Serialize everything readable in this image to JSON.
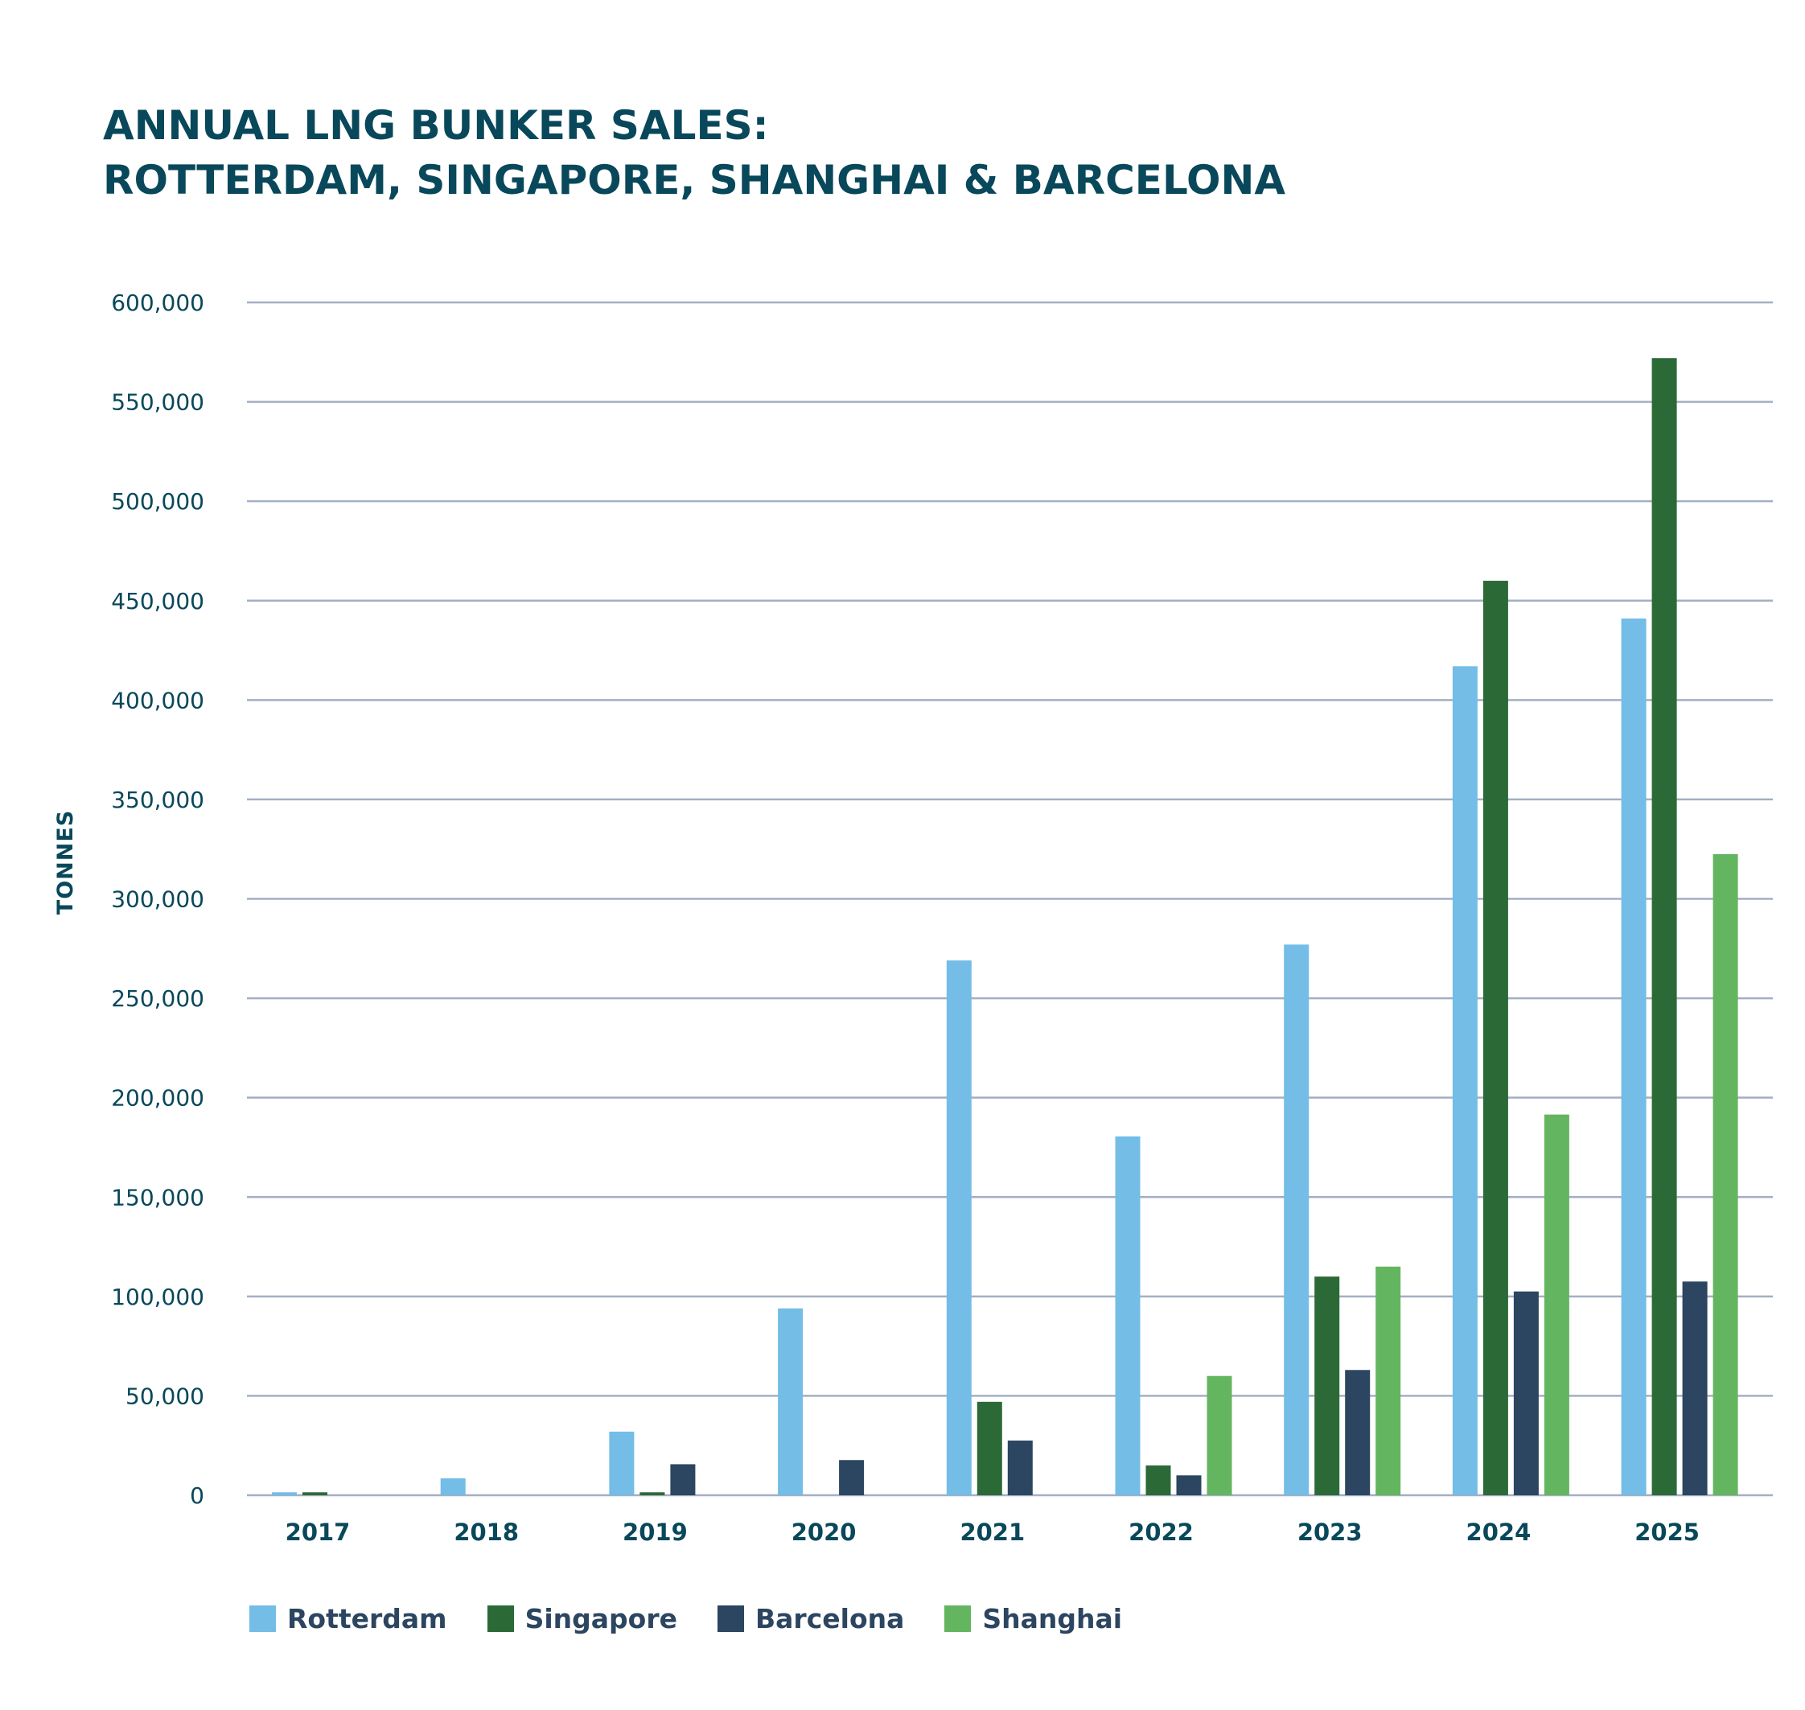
{
  "chart_data": {
    "type": "bar",
    "title": [
      "ANNUAL LNG BUNKER SALES:",
      "ROTTERDAM, SINGAPORE, SHANGHAI & BARCELONA"
    ],
    "xlabel": "",
    "ylabel": "TONNES",
    "categories": [
      "2017",
      "2018",
      "2019",
      "2020",
      "2021",
      "2022",
      "2023",
      "2024",
      "2025"
    ],
    "ylim": [
      0,
      600000
    ],
    "yticks": [
      0,
      50000,
      100000,
      150000,
      200000,
      250000,
      300000,
      350000,
      400000,
      450000,
      500000,
      550000,
      600000
    ],
    "ytick_labels": [
      "0",
      "50,000",
      "100,000",
      "150,000",
      "200,000",
      "250,000",
      "300,000",
      "350,000",
      "400,000",
      "450,000",
      "500,000",
      "550,000",
      "600,000"
    ],
    "grid": true,
    "legend_position": "bottom-left",
    "series": [
      {
        "name": "Rotterdam",
        "color": "#73bde6",
        "values": [
          1500,
          8500,
          32000,
          94000,
          269000,
          180500,
          277000,
          417000,
          441000
        ]
      },
      {
        "name": "Singapore",
        "color": "#2b6a37",
        "values": [
          1500,
          0,
          1500,
          0,
          47000,
          15000,
          110000,
          460000,
          572000
        ]
      },
      {
        "name": "Barcelona",
        "color": "#2c4560",
        "values": [
          0,
          0,
          15600,
          17700,
          27500,
          10000,
          63000,
          102500,
          107500
        ]
      },
      {
        "name": "Shanghai",
        "color": "#64b55f",
        "values": [
          0,
          0,
          0,
          0,
          0,
          60000,
          115000,
          191500,
          322500
        ]
      }
    ]
  },
  "colors": {
    "title": "#08485a",
    "grid": "#a3afc4",
    "legend_text": "#2c4560"
  }
}
